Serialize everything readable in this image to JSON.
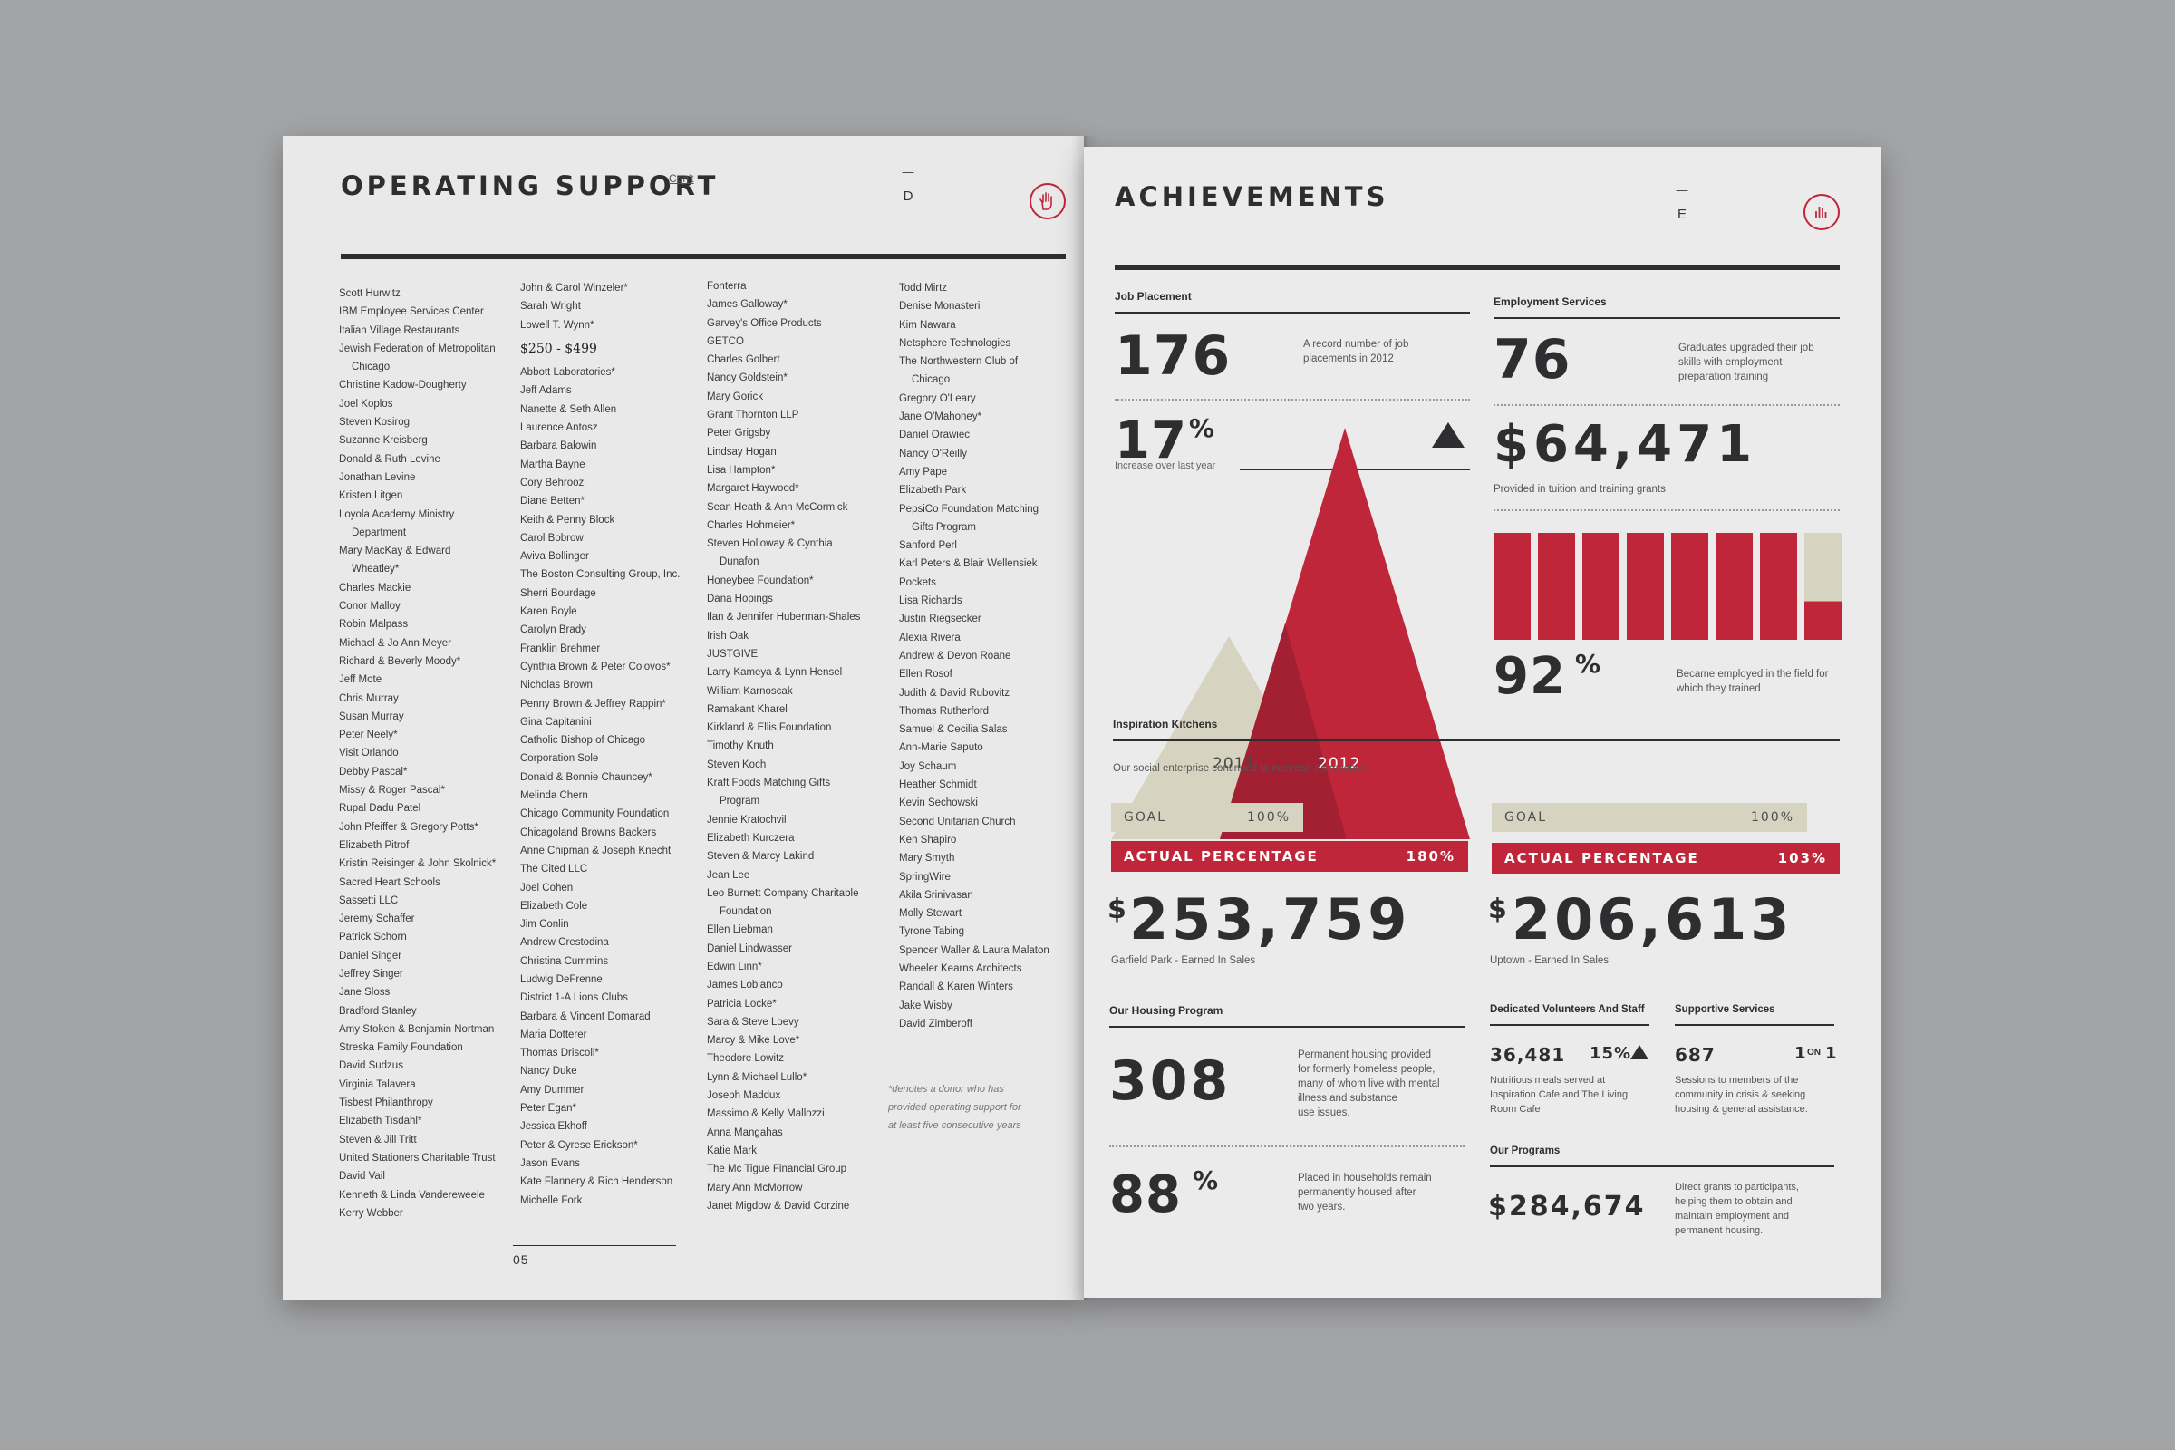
{
  "colors": {
    "accent": "#c0263a",
    "khaki": "#d6d4c1",
    "ink": "#2e2e30",
    "paper": "#ebebec"
  },
  "left": {
    "title": "OPERATING SUPPORT",
    "cont": "Con't",
    "dash": "—",
    "letter": "D",
    "icon": "hand-icon",
    "page_number": "05",
    "note_dash": "—",
    "note": [
      "*denotes a donor who has",
      "provided operating support for",
      "at least five consecutive years"
    ],
    "col1": [
      "Scott Hurwitz",
      "IBM Employee Services Center",
      "Italian Village Restaurants",
      "Jewish Federation of Metropolitan",
      "Chicago",
      "Christine Kadow-Dougherty",
      "Joel Koplos",
      "Steven Kosirog",
      "Suzanne Kreisberg",
      "Donald & Ruth Levine",
      "Jonathan Levine",
      "Kristen Litgen",
      "Loyola Academy Ministry",
      "Department",
      "Mary MacKay & Edward",
      "Wheatley*",
      "Charles Mackie",
      "Conor Malloy",
      "Robin Malpass",
      "Michael & Jo Ann Meyer",
      "Richard & Beverly Moody*",
      "Jeff Mote",
      "Chris Murray",
      "Susan Murray",
      "Peter Neely*",
      "Visit Orlando",
      "Debby Pascal*",
      "Missy & Roger Pascal*",
      "Rupal Dadu Patel",
      "John Pfeiffer & Gregory Potts*",
      "Elizabeth Pitrof",
      "Kristin Reisinger & John Skolnick*",
      "Sacred Heart Schools",
      "Sassetti LLC",
      "Jeremy Schaffer",
      "Patrick Schorn",
      "Daniel Singer",
      "Jeffrey Singer",
      "Jane Sloss",
      "Bradford Stanley",
      "Amy Stoken & Benjamin Nortman",
      "Streska Family Foundation",
      "David Sudzus",
      "Virginia Talavera",
      "Tisbest Philanthropy",
      "Elizabeth Tisdahl*",
      "Steven & Jill Tritt",
      "United Stationers Charitable Trust",
      "David Vail",
      "Kenneth & Linda Vandereweele",
      "Kerry Webber"
    ],
    "col1_indent": [
      4,
      13,
      15
    ],
    "col2_top": [
      "John & Carol Winzeler*",
      "Sarah Wright",
      "Lowell T. Wynn*"
    ],
    "col2_heading": "$250 - $499",
    "col2": [
      "Abbott Laboratories*",
      "Jeff Adams",
      "Nanette & Seth Allen",
      "Laurence Antosz",
      "Barbara Balowin",
      "Martha Bayne",
      "Cory Behroozi",
      "Diane Betten*",
      "Keith & Penny Block",
      "Carol Bobrow",
      "Aviva Bollinger",
      "The Boston Consulting Group, Inc.",
      "Sherri Bourdage",
      "Karen Boyle",
      "Carolyn Brady",
      "Franklin Brehmer",
      "Cynthia Brown & Peter Colovos*",
      "Nicholas Brown",
      "Penny Brown & Jeffrey Rappin*",
      "Gina Capitanini",
      "Catholic Bishop of Chicago",
      "Corporation Sole",
      "Donald & Bonnie Chauncey*",
      "Melinda Chern",
      "Chicago Community Foundation",
      "Chicagoland Browns Backers",
      "Anne Chipman & Joseph Knecht",
      "The Cited LLC",
      "Joel Cohen",
      "Elizabeth Cole",
      "Jim Conlin",
      "Andrew Crestodina",
      "Christina Cummins",
      "Ludwig DeFrenne",
      "District 1-A Lions Clubs",
      "Barbara & Vincent Domarad",
      "Maria Dotterer",
      "Thomas Driscoll*",
      "Nancy Duke",
      "Amy Dummer",
      "Peter Egan*",
      "Jessica Ekhoff",
      "Peter & Cyrese Erickson*",
      "Jason Evans",
      "Kate Flannery & Rich Henderson",
      "Michelle Fork"
    ],
    "col3": [
      "Fonterra",
      "James Galloway*",
      "Garvey's Office Products",
      "GETCO",
      "Charles Golbert",
      "Nancy Goldstein*",
      "Mary Gorick",
      "Grant Thornton LLP",
      "Peter Grigsby",
      "Lindsay Hogan",
      "Lisa Hampton*",
      "Margaret Haywood*",
      "Sean Heath & Ann McCormick",
      "Charles Hohmeier*",
      "Steven Holloway & Cynthia",
      "Dunafon",
      "Honeybee Foundation*",
      "Dana Hopings",
      "Ilan & Jennifer Huberman-Shales",
      "Irish Oak",
      "JUSTGIVE",
      "Larry Kameya & Lynn Hensel",
      "William Karnoscak",
      "Ramakant Kharel",
      "Kirkland & Ellis Foundation",
      "Timothy Knuth",
      "Steven Koch",
      "Kraft Foods Matching Gifts",
      "Program",
      "Jennie Kratochvil",
      "Elizabeth Kurczera",
      "Steven & Marcy Lakind",
      "Jean Lee",
      "Leo Burnett Company Charitable",
      "Foundation",
      "Ellen Liebman",
      "Daniel Lindwasser",
      "Edwin Linn*",
      "James Loblanco",
      "Patricia Locke*",
      "Sara & Steve Loevy",
      "Marcy & Mike Love*",
      "Theodore Lowitz",
      "Lynn & Michael Lullo*",
      "Joseph Maddux",
      "Massimo & Kelly Mallozzi",
      "Anna Mangahas",
      "Katie Mark",
      "The Mc Tigue Financial Group",
      "Mary Ann McMorrow",
      "Janet Migdow & David Corzine"
    ],
    "col3_indent": [
      15,
      28,
      34
    ],
    "col4": [
      "Todd Mirtz",
      "Denise Monasteri",
      "Kim Nawara",
      "Netsphere Technologies",
      "The Northwestern Club of",
      "Chicago",
      "Gregory O'Leary",
      "Jane O'Mahoney*",
      "Daniel Orawiec",
      "Nancy O'Reilly",
      "Amy Pape",
      "Elizabeth Park",
      "PepsiCo Foundation Matching",
      "Gifts Program",
      "Sanford Perl",
      "Karl Peters & Blair Wellensiek",
      "Pockets",
      "Lisa Richards",
      "Justin Riegsecker",
      "Alexia Rivera",
      "Andrew & Devon Roane",
      "Ellen Rosof",
      "Judith & David Rubovitz",
      "Thomas Rutherford",
      "Samuel & Cecilia Salas",
      "Ann-Marie Saputo",
      "Joy Schaum",
      "Heather Schmidt",
      "Kevin Sechowski",
      "Second Unitarian Church",
      "Ken Shapiro",
      "Mary Smyth",
      "SpringWire",
      "Akila Srinivasan",
      "Molly Stewart",
      "Tyrone Tabing",
      "Spencer Waller & Laura Malaton",
      "Wheeler Kearns Architects",
      "Randall & Karen Winters",
      "Jake Wisby",
      "David Zimberoff"
    ],
    "col4_indent": [
      5,
      13
    ]
  },
  "right": {
    "title": "ACHIEVEMENTS",
    "dash": "—",
    "letter": "E",
    "icon": "bar-chart-icon",
    "job": {
      "label": "Job Placement",
      "value": "176",
      "desc": "A record number of job placements in 2012",
      "pct": "17",
      "pct_sign": "%",
      "pct_label": "Increase over last year"
    },
    "tri_chart": {
      "type": "area",
      "categories": [
        "2011",
        "2012"
      ],
      "values": [
        150,
        176
      ]
    },
    "employment": {
      "label": "Employment Services",
      "value": "76",
      "desc": "Graduates upgraded their job skills with employment preparation training",
      "money": "$64,471",
      "money_label": "Provided  in tuition and training grants",
      "pct": "92",
      "pct_sign": "%",
      "pct_desc": "Became employed in the field for which they trained"
    },
    "employ_chart": {
      "type": "bar",
      "percent": 92,
      "bar_count": 8
    },
    "kitchens": {
      "label": "Inspiration Kitchens",
      "intro": "Our social enterprise continued to increase it's revenue",
      "left": {
        "goal": "GOAL",
        "goal_pct": "100%",
        "actual": "ACTUAL PERCENTAGE",
        "actual_pct": "180%",
        "dollar": "$",
        "amount": "253,759",
        "caption": "Garfield Park - Earned In Sales"
      },
      "right": {
        "goal": "GOAL",
        "goal_pct": "100%",
        "actual": "ACTUAL PERCENTAGE",
        "actual_pct": "103%",
        "dollar": "$",
        "amount": "206,613",
        "caption": "Uptown - Earned In Sales"
      }
    },
    "housing": {
      "label": "Our Housing Program",
      "value": "308",
      "desc": [
        "Permanent housing provided",
        "for formerly homeless people,",
        "many of whom live with mental",
        "illness and substance",
        "use issues."
      ],
      "pct": "88",
      "pct_sign": "%",
      "pct_desc": [
        "Placed in households remain",
        "permanently housed after",
        "two years."
      ]
    },
    "volunteers": {
      "label": "Dedicated Volunteers And Staff",
      "value": "36,481",
      "pct": "15%",
      "desc": [
        "Nutritious meals served at",
        "Inspiration Cafe and The Living",
        "Room Cafe"
      ]
    },
    "supportive": {
      "label": "Supportive Services",
      "value": "687",
      "ratio_a": "1",
      "ratio_on": "ON",
      "ratio_b": "1",
      "desc": [
        "Sessions to members of the",
        "community in crisis & seeking",
        "housing & general assistance."
      ]
    },
    "programs": {
      "label": "Our Programs",
      "value": "$284,674",
      "desc": [
        "Direct grants to participants,",
        "helping them to obtain and",
        "maintain employment and",
        "permanent housing."
      ]
    }
  }
}
